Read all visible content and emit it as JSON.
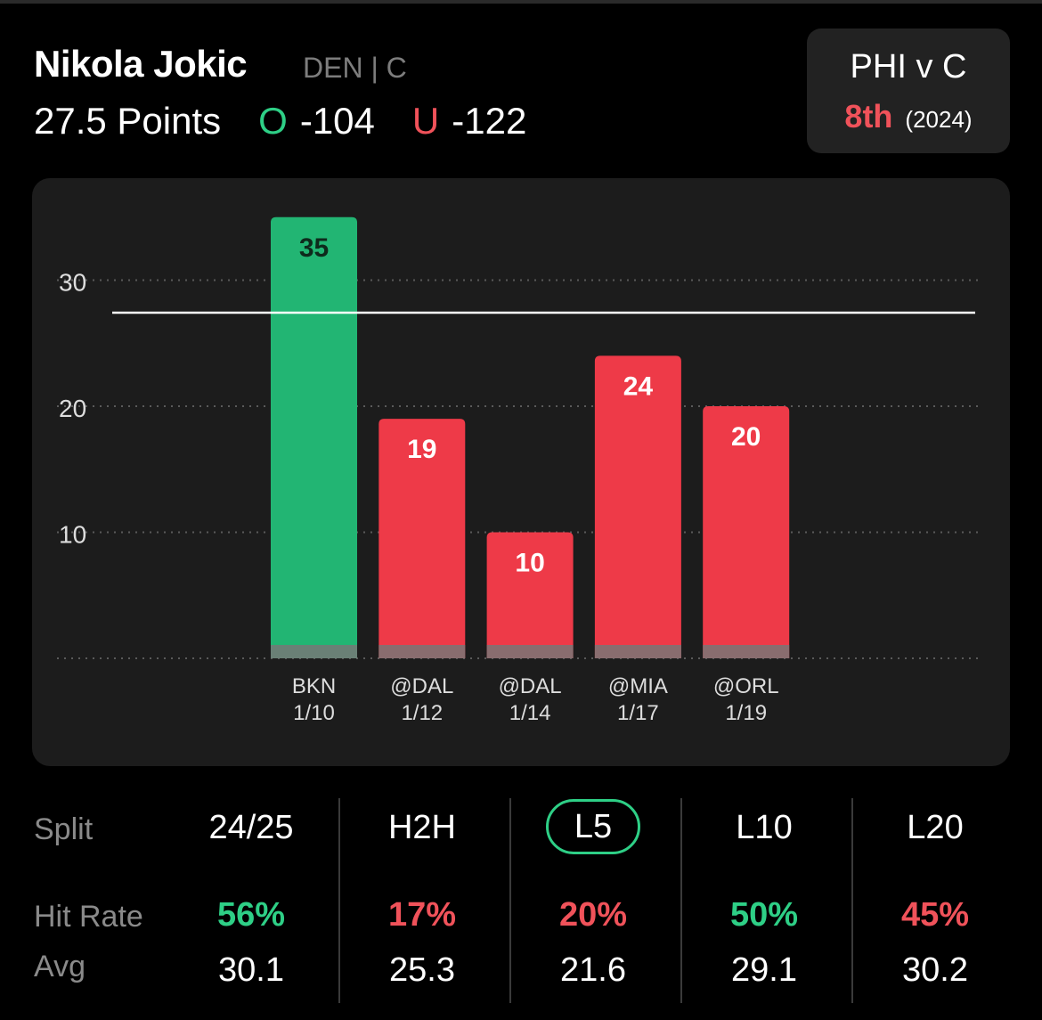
{
  "player": {
    "name": "Nikola Jokic",
    "team_pos": "DEN | C",
    "line": "27.5 Points",
    "over_mark": "O",
    "over_odds": "-104",
    "under_mark": "U",
    "under_odds": "-122"
  },
  "matchup": {
    "title": "PHI v C",
    "rank": "8th",
    "year": "(2024)"
  },
  "colors": {
    "over": "#22b573",
    "under": "#ee3a48",
    "green_text": "#2ecf86",
    "red_text": "#f0525a"
  },
  "chart_data": {
    "type": "bar",
    "categories": [
      "BKN 1/10",
      "@DAL 1/12",
      "@DAL 1/14",
      "@MIA 1/17",
      "@ORL 1/19"
    ],
    "opponents": [
      "BKN",
      "@DAL",
      "@DAL",
      "@MIA",
      "@ORL"
    ],
    "dates": [
      "1/10",
      "1/12",
      "1/14",
      "1/17",
      "1/19"
    ],
    "values": [
      35,
      19,
      10,
      24,
      20
    ],
    "bar_colors": [
      "#22b573",
      "#ee3a48",
      "#ee3a48",
      "#ee3a48",
      "#ee3a48"
    ],
    "y_ticks": [
      10,
      20,
      30
    ],
    "ylim": [
      0,
      35
    ],
    "reference_line": 27.5,
    "grid": true
  },
  "splits": {
    "row_labels": {
      "split": "Split",
      "hit_rate": "Hit Rate",
      "avg": "Avg"
    },
    "columns": [
      {
        "label": "24/25",
        "hit_rate": "56%",
        "hit_color": "green",
        "avg": "30.1",
        "active": false
      },
      {
        "label": "H2H",
        "hit_rate": "17%",
        "hit_color": "red",
        "avg": "25.3",
        "active": false
      },
      {
        "label": "L5",
        "hit_rate": "20%",
        "hit_color": "red",
        "avg": "21.6",
        "active": true
      },
      {
        "label": "L10",
        "hit_rate": "50%",
        "hit_color": "green",
        "avg": "29.1",
        "active": false
      },
      {
        "label": "L20",
        "hit_rate": "45%",
        "hit_color": "red",
        "avg": "30.2",
        "active": false
      }
    ]
  }
}
